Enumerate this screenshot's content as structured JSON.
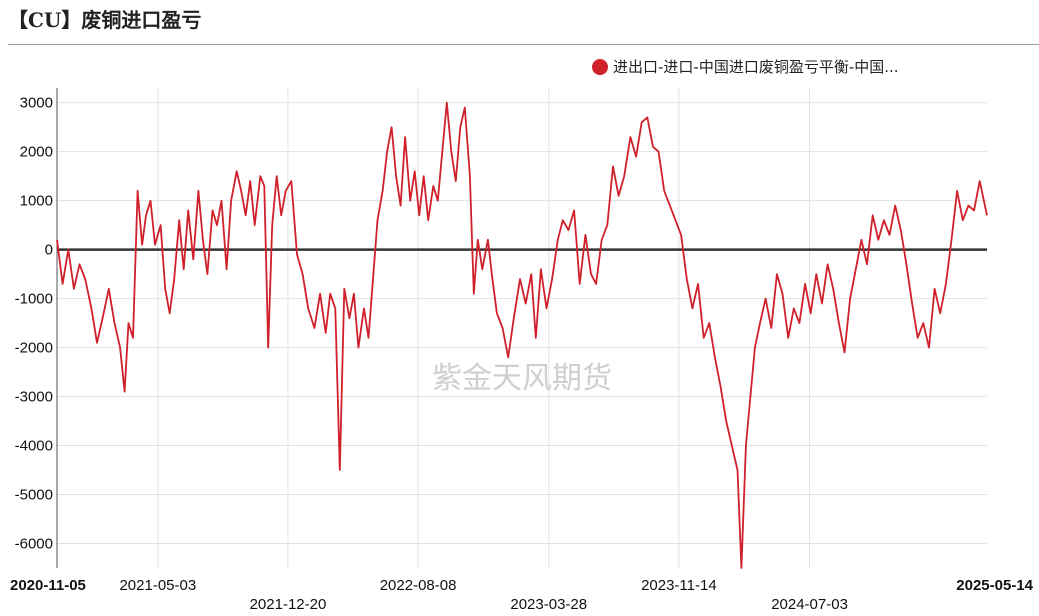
{
  "title": "【CU】废铜进口盈亏",
  "watermark": "紫金天风期货",
  "colors": {
    "series": "#d0202a",
    "zero_line": "#333333",
    "grid": "#e2e2e2"
  },
  "chart_data": {
    "type": "line",
    "title": "【CU】废铜进口盈亏",
    "xlabel": "",
    "ylabel": "",
    "ylim": [
      -6500,
      3300
    ],
    "yticks": [
      3000,
      2000,
      1000,
      0,
      -1000,
      -2000,
      -3000,
      -4000,
      -5000,
      -6000
    ],
    "x_range": [
      "2020-11-05",
      "2025-05-14"
    ],
    "xticks": [
      {
        "date": "2020-11-05",
        "label": "2020-11-05",
        "bold": true
      },
      {
        "date": "2021-05-03",
        "label": "2021-05-03",
        "bold": false
      },
      {
        "date": "2021-12-20",
        "label": "2021-12-20",
        "bold": false
      },
      {
        "date": "2022-08-08",
        "label": "2022-08-08",
        "bold": false
      },
      {
        "date": "2023-03-28",
        "label": "2023-03-28",
        "bold": false
      },
      {
        "date": "2023-11-14",
        "label": "2023-11-14",
        "bold": false
      },
      {
        "date": "2024-07-03",
        "label": "2024-07-03",
        "bold": false
      },
      {
        "date": "2025-05-14",
        "label": "2025-05-14",
        "bold": true
      }
    ],
    "grid": true,
    "legend_position": "top-right",
    "series": [
      {
        "name": "进出口-进口-中国进口废铜盈亏平衡-中国...",
        "points": [
          [
            "2020-11-05",
            200
          ],
          [
            "2020-11-15",
            -700
          ],
          [
            "2020-11-25",
            0
          ],
          [
            "2020-12-05",
            -800
          ],
          [
            "2020-12-15",
            -300
          ],
          [
            "2020-12-25",
            -600
          ],
          [
            "2021-01-05",
            -1200
          ],
          [
            "2021-01-15",
            -1900
          ],
          [
            "2021-01-25",
            -1400
          ],
          [
            "2021-02-05",
            -800
          ],
          [
            "2021-02-15",
            -1500
          ],
          [
            "2021-02-25",
            -2000
          ],
          [
            "2021-03-05",
            -2900
          ],
          [
            "2021-03-12",
            -1500
          ],
          [
            "2021-03-20",
            -1800
          ],
          [
            "2021-03-28",
            1200
          ],
          [
            "2021-04-05",
            100
          ],
          [
            "2021-04-12",
            700
          ],
          [
            "2021-04-20",
            1000
          ],
          [
            "2021-04-28",
            100
          ],
          [
            "2021-05-08",
            500
          ],
          [
            "2021-05-16",
            -800
          ],
          [
            "2021-05-24",
            -1300
          ],
          [
            "2021-06-01",
            -600
          ],
          [
            "2021-06-10",
            600
          ],
          [
            "2021-06-18",
            -400
          ],
          [
            "2021-06-26",
            800
          ],
          [
            "2021-07-05",
            -200
          ],
          [
            "2021-07-14",
            1200
          ],
          [
            "2021-07-22",
            200
          ],
          [
            "2021-07-30",
            -500
          ],
          [
            "2021-08-08",
            800
          ],
          [
            "2021-08-16",
            500
          ],
          [
            "2021-08-24",
            1000
          ],
          [
            "2021-09-02",
            -400
          ],
          [
            "2021-09-10",
            1000
          ],
          [
            "2021-09-20",
            1600
          ],
          [
            "2021-09-28",
            1200
          ],
          [
            "2021-10-06",
            700
          ],
          [
            "2021-10-14",
            1400
          ],
          [
            "2021-10-22",
            500
          ],
          [
            "2021-11-01",
            1500
          ],
          [
            "2021-11-08",
            1300
          ],
          [
            "2021-11-15",
            -2000
          ],
          [
            "2021-11-22",
            500
          ],
          [
            "2021-11-30",
            1500
          ],
          [
            "2021-12-08",
            700
          ],
          [
            "2021-12-16",
            1200
          ],
          [
            "2021-12-26",
            1400
          ],
          [
            "2022-01-05",
            -100
          ],
          [
            "2022-01-15",
            -500
          ],
          [
            "2022-01-25",
            -1200
          ],
          [
            "2022-02-05",
            -1600
          ],
          [
            "2022-02-15",
            -900
          ],
          [
            "2022-02-25",
            -1700
          ],
          [
            "2022-03-05",
            -900
          ],
          [
            "2022-03-14",
            -1200
          ],
          [
            "2022-03-22",
            -4500
          ],
          [
            "2022-03-30",
            -800
          ],
          [
            "2022-04-08",
            -1400
          ],
          [
            "2022-04-16",
            -900
          ],
          [
            "2022-04-24",
            -2000
          ],
          [
            "2022-05-04",
            -1200
          ],
          [
            "2022-05-12",
            -1800
          ],
          [
            "2022-05-20",
            -600
          ],
          [
            "2022-05-28",
            600
          ],
          [
            "2022-06-06",
            1200
          ],
          [
            "2022-06-14",
            2000
          ],
          [
            "2022-06-22",
            2500
          ],
          [
            "2022-06-30",
            1500
          ],
          [
            "2022-07-08",
            900
          ],
          [
            "2022-07-16",
            2300
          ],
          [
            "2022-07-25",
            1000
          ],
          [
            "2022-08-02",
            1600
          ],
          [
            "2022-08-10",
            700
          ],
          [
            "2022-08-18",
            1500
          ],
          [
            "2022-08-26",
            600
          ],
          [
            "2022-09-04",
            1300
          ],
          [
            "2022-09-12",
            1000
          ],
          [
            "2022-09-20",
            2000
          ],
          [
            "2022-09-28",
            3000
          ],
          [
            "2022-10-06",
            2000
          ],
          [
            "2022-10-14",
            1400
          ],
          [
            "2022-10-22",
            2500
          ],
          [
            "2022-10-30",
            2900
          ],
          [
            "2022-11-08",
            1500
          ],
          [
            "2022-11-15",
            -900
          ],
          [
            "2022-11-22",
            200
          ],
          [
            "2022-11-30",
            -400
          ],
          [
            "2022-12-10",
            200
          ],
          [
            "2022-12-18",
            -600
          ],
          [
            "2022-12-26",
            -1300
          ],
          [
            "2023-01-05",
            -1600
          ],
          [
            "2023-01-15",
            -2200
          ],
          [
            "2023-01-25",
            -1400
          ],
          [
            "2023-02-05",
            -600
          ],
          [
            "2023-02-15",
            -1100
          ],
          [
            "2023-02-25",
            -500
          ],
          [
            "2023-03-05",
            -1800
          ],
          [
            "2023-03-14",
            -400
          ],
          [
            "2023-03-24",
            -1200
          ],
          [
            "2023-04-03",
            -600
          ],
          [
            "2023-04-13",
            200
          ],
          [
            "2023-04-22",
            600
          ],
          [
            "2023-05-02",
            400
          ],
          [
            "2023-05-12",
            800
          ],
          [
            "2023-05-22",
            -700
          ],
          [
            "2023-06-01",
            300
          ],
          [
            "2023-06-11",
            -500
          ],
          [
            "2023-06-20",
            -700
          ],
          [
            "2023-06-30",
            200
          ],
          [
            "2023-07-10",
            500
          ],
          [
            "2023-07-20",
            1700
          ],
          [
            "2023-07-30",
            1100
          ],
          [
            "2023-08-09",
            1500
          ],
          [
            "2023-08-20",
            2300
          ],
          [
            "2023-08-30",
            1900
          ],
          [
            "2023-09-09",
            2600
          ],
          [
            "2023-09-19",
            2700
          ],
          [
            "2023-09-29",
            2100
          ],
          [
            "2023-10-09",
            2000
          ],
          [
            "2023-10-19",
            1200
          ],
          [
            "2023-10-29",
            900
          ],
          [
            "2023-11-08",
            600
          ],
          [
            "2023-11-18",
            300
          ],
          [
            "2023-11-28",
            -600
          ],
          [
            "2023-12-08",
            -1200
          ],
          [
            "2023-12-18",
            -700
          ],
          [
            "2023-12-28",
            -1800
          ],
          [
            "2024-01-07",
            -1500
          ],
          [
            "2024-01-17",
            -2200
          ],
          [
            "2024-01-27",
            -2800
          ],
          [
            "2024-02-06",
            -3500
          ],
          [
            "2024-02-16",
            -4000
          ],
          [
            "2024-02-26",
            -4500
          ],
          [
            "2024-03-04",
            -6500
          ],
          [
            "2024-03-12",
            -4000
          ],
          [
            "2024-03-20",
            -3000
          ],
          [
            "2024-03-28",
            -2000
          ],
          [
            "2024-04-06",
            -1500
          ],
          [
            "2024-04-16",
            -1000
          ],
          [
            "2024-04-26",
            -1600
          ],
          [
            "2024-05-06",
            -500
          ],
          [
            "2024-05-16",
            -900
          ],
          [
            "2024-05-26",
            -1800
          ],
          [
            "2024-06-05",
            -1200
          ],
          [
            "2024-06-15",
            -1500
          ],
          [
            "2024-06-25",
            -700
          ],
          [
            "2024-07-05",
            -1300
          ],
          [
            "2024-07-15",
            -500
          ],
          [
            "2024-07-25",
            -1100
          ],
          [
            "2024-08-04",
            -300
          ],
          [
            "2024-08-14",
            -800
          ],
          [
            "2024-08-24",
            -1500
          ],
          [
            "2024-09-03",
            -2100
          ],
          [
            "2024-09-13",
            -1000
          ],
          [
            "2024-09-23",
            -400
          ],
          [
            "2024-10-03",
            200
          ],
          [
            "2024-10-13",
            -300
          ],
          [
            "2024-10-23",
            700
          ],
          [
            "2024-11-02",
            200
          ],
          [
            "2024-11-12",
            600
          ],
          [
            "2024-11-22",
            300
          ],
          [
            "2024-12-02",
            900
          ],
          [
            "2024-12-12",
            400
          ],
          [
            "2024-12-22",
            -300
          ],
          [
            "2025-01-01",
            -1100
          ],
          [
            "2025-01-11",
            -1800
          ],
          [
            "2025-01-21",
            -1500
          ],
          [
            "2025-01-31",
            -2000
          ],
          [
            "2025-02-10",
            -800
          ],
          [
            "2025-02-20",
            -1300
          ],
          [
            "2025-03-02",
            -700
          ],
          [
            "2025-03-12",
            200
          ],
          [
            "2025-03-22",
            1200
          ],
          [
            "2025-04-01",
            600
          ],
          [
            "2025-04-11",
            900
          ],
          [
            "2025-04-21",
            800
          ],
          [
            "2025-05-01",
            1400
          ],
          [
            "2025-05-14",
            700
          ]
        ]
      }
    ]
  }
}
